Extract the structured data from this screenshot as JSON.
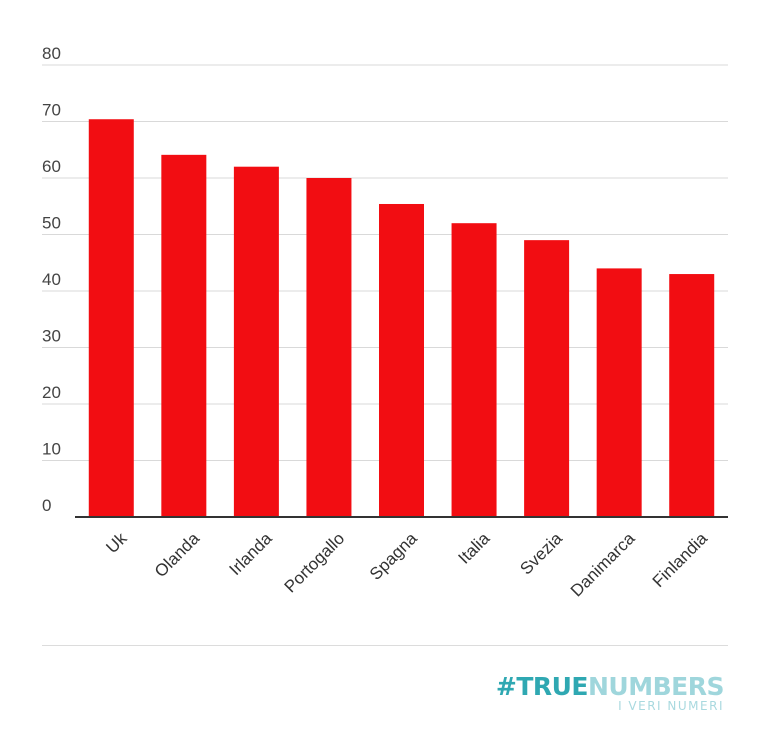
{
  "chart_data": {
    "type": "bar",
    "title": "",
    "xlabel": "",
    "ylabel": "",
    "categories": [
      "Uk",
      "Olanda",
      "Irlanda",
      "Portogallo",
      "Spagna",
      "Italia",
      "Svezia",
      "Danimarca",
      "Finlandia"
    ],
    "values": [
      70.4,
      64.1,
      62.0,
      60.0,
      55.4,
      52.0,
      49.0,
      44.0,
      43.0
    ],
    "ylim": [
      0,
      80
    ],
    "yticks": [
      0,
      10,
      20,
      30,
      40,
      50,
      60,
      70,
      80
    ],
    "grid": true,
    "bar_color": "#f20d12"
  },
  "logo": {
    "hash": "#",
    "part1": "TRUE",
    "part2": "NUMBERS",
    "tagline": "I VERI NUMERI",
    "color_primary": "#2fa8b2",
    "color_light": "#9fd6dc"
  }
}
